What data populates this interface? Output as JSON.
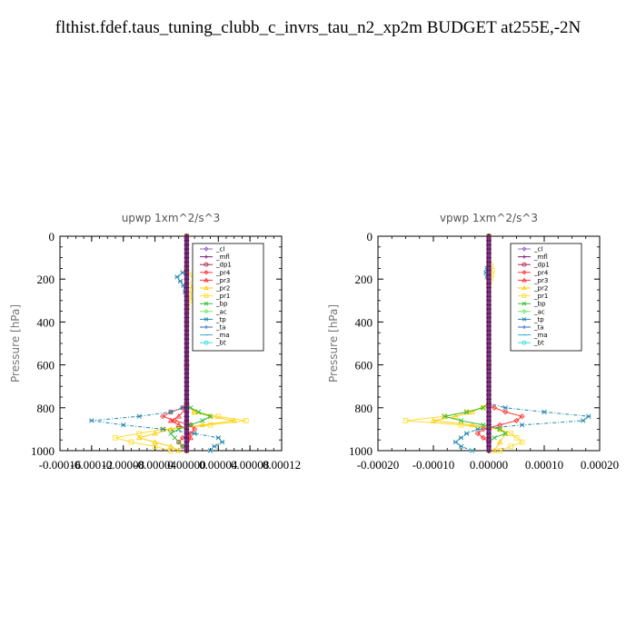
{
  "title": "flthist.fdef.taus_tuning_clubb_c_invrs_tau_n2_xp2m  BUDGET at255E,-2N",
  "legend": [
    {
      "name": "_cl",
      "color": "#9966cc",
      "marker": "diamond"
    },
    {
      "name": "_mfl",
      "color": "#7a1f7a",
      "marker": "plus"
    },
    {
      "name": "_dp1",
      "color": "#aa1f4f",
      "marker": "circle"
    },
    {
      "name": "_pr4",
      "color": "#ff3333",
      "marker": "diamond"
    },
    {
      "name": "_pr3",
      "color": "#ff3333",
      "marker": "tri"
    },
    {
      "name": "_pr2",
      "color": "#ffcc00",
      "marker": "tri"
    },
    {
      "name": "_pr1",
      "color": "#ffdd33",
      "marker": "square"
    },
    {
      "name": "_bp",
      "color": "#33bb33",
      "marker": "cross"
    },
    {
      "name": "_ac",
      "color": "#66ee66",
      "marker": "diamond"
    },
    {
      "name": "_tp",
      "color": "#2288aa",
      "marker": "star"
    },
    {
      "name": "_ta",
      "color": "#3366cc",
      "marker": "plus"
    },
    {
      "name": "_ma",
      "color": "#33aacc",
      "marker": "dash"
    },
    {
      "name": "_bt",
      "color": "#33dddd",
      "marker": "circle"
    }
  ],
  "chart_data": [
    {
      "type": "line",
      "title": "upwp   1xm^2/s^3",
      "ylabel": "Pressure [hPa]",
      "xlim": [
        -0.00016,
        0.00012
      ],
      "ylim": [
        1000,
        0
      ],
      "xticks": [
        -0.00016,
        -0.00012,
        -8e-05,
        -4e-05,
        0.0,
        4e-05,
        8e-05,
        0.00012
      ],
      "xtick_labels": [
        "-0.00016",
        "-0.00012",
        "-0.00008",
        "-0.00004",
        "0.00000",
        "0.00004",
        "0.00008",
        "0.00012"
      ],
      "yticks": [
        0,
        200,
        400,
        600,
        800,
        1000
      ],
      "series": [
        {
          "name": "_pr1",
          "y": [
            0,
            150,
            180,
            200,
            220,
            250,
            280,
            300,
            330,
            350,
            400,
            600,
            780,
            820,
            840,
            860,
            880,
            900,
            920,
            940,
            960,
            980,
            1000
          ],
          "x": [
            0,
            0,
            5e-06,
            1e-05,
            8e-06,
            4e-06,
            6e-06,
            4e-06,
            1e-06,
            0,
            0,
            0,
            0,
            1e-05,
            4e-05,
            7.5e-05,
            3e-05,
            -3e-05,
            -6e-05,
            -9e-05,
            -7e-05,
            -4e-05,
            -2e-05
          ]
        },
        {
          "name": "_pr2",
          "y": [
            0,
            600,
            780,
            820,
            840,
            860,
            880,
            900,
            920,
            940,
            960,
            980,
            1000
          ],
          "x": [
            0,
            0,
            0,
            1e-05,
            3e-05,
            6e-05,
            2e-05,
            -2e-05,
            -4e-05,
            -6e-05,
            -4e-05,
            -2e-05,
            -1e-05
          ]
        },
        {
          "name": "_pr4",
          "y": [
            0,
            600,
            780,
            800,
            820,
            840,
            860,
            880,
            900,
            920,
            940,
            960,
            980,
            1000
          ],
          "x": [
            0,
            0,
            0,
            -5e-06,
            -2e-05,
            -3e-05,
            -1.5e-05,
            5e-06,
            1e-05,
            5e-06,
            -5e-06,
            -1e-05,
            -5e-06,
            0
          ]
        },
        {
          "name": "_pr3",
          "y": [
            0,
            600,
            800,
            840,
            860,
            880,
            900,
            940,
            980,
            1000
          ],
          "x": [
            0,
            0,
            0,
            -1e-05,
            -2e-05,
            -1e-05,
            0,
            5e-06,
            0,
            0
          ]
        },
        {
          "name": "_bp",
          "y": [
            0,
            600,
            780,
            800,
            820,
            840,
            860,
            880,
            900,
            920,
            940,
            960,
            980,
            1000
          ],
          "x": [
            0,
            0,
            0,
            5e-06,
            1.5e-05,
            3e-05,
            2e-05,
            5e-06,
            -1e-05,
            -2e-05,
            -1.5e-05,
            -1e-05,
            -5e-06,
            0
          ]
        },
        {
          "name": "_tp",
          "y": [
            0,
            150,
            170,
            190,
            210,
            230,
            260,
            300,
            350,
            400,
            600,
            780,
            800,
            820,
            840,
            860,
            880,
            900,
            920,
            940,
            960,
            980,
            1000
          ],
          "x": [
            0,
            0,
            -5e-06,
            -1.2e-05,
            -8e-06,
            -4e-06,
            -2e-06,
            0,
            0,
            0,
            0,
            0,
            -5e-06,
            -2e-05,
            -6e-05,
            -0.00012,
            -8e-05,
            -3e-05,
            1e-05,
            4e-05,
            4.5e-05,
            3.5e-05,
            3e-05
          ]
        },
        {
          "name": "_mfl",
          "y": [
            0,
            1000
          ],
          "x": [
            0,
            0
          ]
        },
        {
          "name": "_cl",
          "y": [
            0,
            1000
          ],
          "x": [
            0,
            0
          ]
        }
      ]
    },
    {
      "type": "line",
      "title": "vpwp   1xm^2/s^3",
      "ylabel": "Pressure [hPa]",
      "xlim": [
        -0.0002,
        0.0002
      ],
      "ylim": [
        1000,
        0
      ],
      "xticks": [
        -0.0002,
        -0.0001,
        0.0,
        0.0001,
        0.0002
      ],
      "xtick_labels": [
        "-0.00020",
        "-0.00010",
        "0.00000",
        "0.00010",
        "0.00020"
      ],
      "yticks": [
        0,
        200,
        400,
        600,
        800,
        1000
      ],
      "series": [
        {
          "name": "_pr1",
          "y": [
            0,
            120,
            140,
            160,
            180,
            200,
            220,
            600,
            780,
            800,
            820,
            840,
            860,
            880,
            900,
            920,
            940,
            960,
            980,
            1000
          ],
          "x": [
            0,
            0,
            4e-06,
            6e-06,
            5e-06,
            3e-06,
            0,
            0,
            0,
            -1e-05,
            -4e-05,
            -8e-05,
            -0.00015,
            -5e-05,
            2e-05,
            4e-05,
            5e-05,
            6e-05,
            4e-05,
            2e-05
          ]
        },
        {
          "name": "_pr2",
          "y": [
            0,
            600,
            780,
            820,
            840,
            860,
            880,
            900,
            920,
            960,
            1000
          ],
          "x": [
            0,
            0,
            0,
            -3e-05,
            -6e-05,
            -0.0001,
            -3e-05,
            2e-05,
            3e-05,
            2e-05,
            1e-05
          ]
        },
        {
          "name": "_pr4",
          "y": [
            0,
            600,
            780,
            800,
            820,
            840,
            860,
            880,
            900,
            920,
            940,
            960,
            1000
          ],
          "x": [
            0,
            0,
            0,
            1e-05,
            3e-05,
            6e-05,
            5e-05,
            2e-05,
            -1e-05,
            -2e-05,
            -1e-05,
            0,
            0
          ]
        },
        {
          "name": "_bp",
          "y": [
            0,
            600,
            780,
            800,
            820,
            840,
            860,
            880,
            900,
            920,
            940,
            960,
            1000
          ],
          "x": [
            0,
            0,
            0,
            -1e-05,
            -4e-05,
            -8e-05,
            -5e-05,
            -1e-05,
            2e-05,
            3e-05,
            1e-05,
            0,
            0
          ]
        },
        {
          "name": "_tp",
          "y": [
            0,
            130,
            150,
            170,
            190,
            600,
            780,
            800,
            820,
            840,
            860,
            880,
            900,
            920,
            940,
            960,
            980,
            1000
          ],
          "x": [
            0,
            0,
            -3e-06,
            -5e-06,
            -3e-06,
            0,
            0,
            3e-05,
            0.0001,
            0.00018,
            0.00017,
            6e-05,
            -2e-05,
            -4e-05,
            -5e-05,
            -6e-05,
            -5e-05,
            -3e-05
          ]
        },
        {
          "name": "_mfl",
          "y": [
            0,
            1000
          ],
          "x": [
            0,
            0
          ]
        },
        {
          "name": "_cl",
          "y": [
            0,
            1000
          ],
          "x": [
            0,
            0
          ]
        }
      ]
    }
  ]
}
